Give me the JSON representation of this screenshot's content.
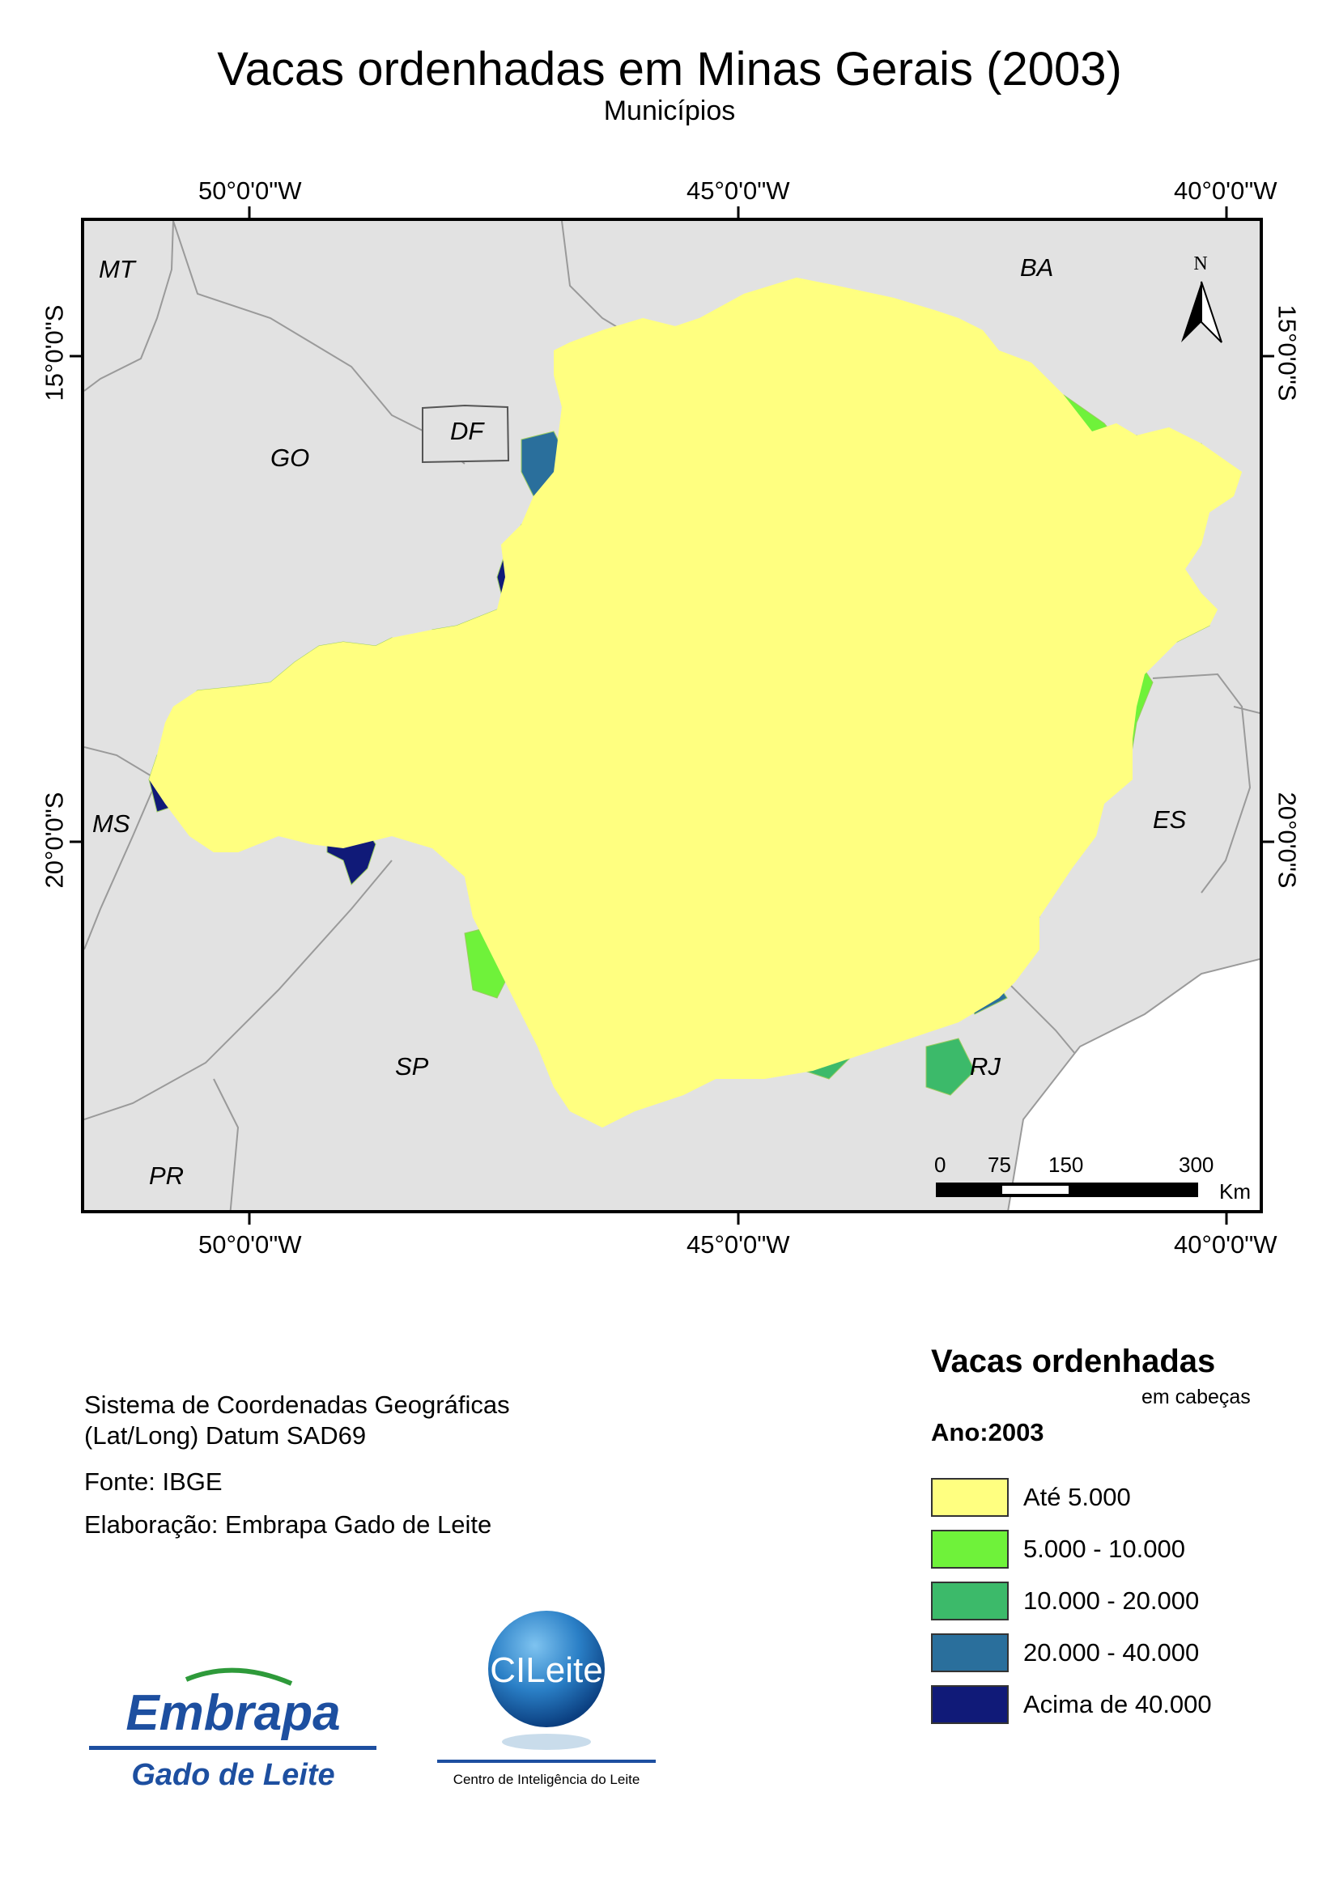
{
  "title": "Vacas ordenhadas em Minas Gerais (2003)",
  "subtitle": "Municípios",
  "grid": {
    "lon_labels": [
      "50°0'0\"W",
      "45°0'0\"W",
      "40°0'0\"W"
    ],
    "lat_labels": [
      "15°0'0\"S",
      "20°0'0\"S"
    ]
  },
  "map": {
    "states": {
      "mt": "MT",
      "go": "GO",
      "df": "DF",
      "ba": "BA",
      "ms": "MS",
      "es": "ES",
      "sp": "SP",
      "rj": "RJ",
      "pr": "PR"
    },
    "north_arrow": "N",
    "scale_bar": {
      "t0": "0",
      "t1": "75",
      "t2": "150",
      "t3": "300",
      "unit": "Km"
    },
    "colors": {
      "background": "#e2e2e2",
      "outline": "#000000",
      "boundaries": "#9a9a9a"
    }
  },
  "info": {
    "line1": "Sistema de Coordenadas Geográficas",
    "line2": "(Lat/Long) Datum SAD69",
    "source": "Fonte: IBGE",
    "credit": "Elaboração: Embrapa Gado de Leite"
  },
  "legend": {
    "title": "Vacas ordenhadas",
    "unit": "em cabeças",
    "year": "Ano:2003",
    "classes": [
      {
        "label": "Até 5.000",
        "color": "#ffff80"
      },
      {
        "label": "5.000 - 10.000",
        "color": "#6ff23a"
      },
      {
        "label": "10.000 - 20.000",
        "color": "#3cba6a"
      },
      {
        "label": "20.000 - 40.000",
        "color": "#2a6f9c"
      },
      {
        "label": "Acima de 40.000",
        "color": "#101a78"
      }
    ]
  },
  "logos": {
    "embrapa_word": "Embrapa",
    "embrapa_sub": "Gado de Leite",
    "cileite_word": "CILeite",
    "cileite_sub": "Centro de Inteligência do Leite"
  }
}
